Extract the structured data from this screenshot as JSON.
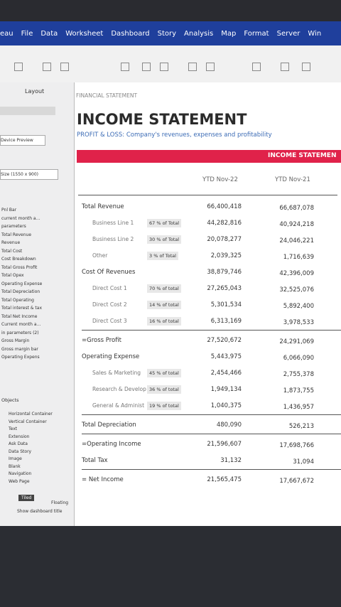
{
  "menu": [
    "eau",
    "File",
    "Data",
    "Worksheet",
    "Dashboard",
    "Story",
    "Analysis",
    "Map",
    "Format",
    "Server",
    "Win"
  ],
  "left_panel": {
    "tab": "Layout",
    "device_preview": "Device Preview",
    "size": "Size (1550 x 900)",
    "sheets": [
      "Pnl Bar",
      "current month a...",
      "parameters",
      "Total Revenue",
      "Revenue",
      "Total Cost",
      "Cost Breakdown",
      "Total Gross Profit",
      "Total Opex",
      "Operating Expense",
      "Total Depreciation",
      "Total Operating",
      "Total interest & tax",
      "Total Net Income",
      "Current month a...",
      "in parameters (2)",
      "Gross Margin",
      "Gross margin bar",
      "Operating Expens"
    ],
    "objects_title": "Objects",
    "objects": [
      "Horizontal Container",
      "Vertical Container",
      "Text",
      "Extension",
      "Ask Data",
      "Data Story",
      "Image",
      "Blank",
      "Navigation",
      "Web Page"
    ],
    "tiled": "Tiled",
    "floating": "Floating",
    "show_title": "Show dashboard title"
  },
  "dashboard": {
    "header": "FINANCIAL STATEMENT",
    "title": "INCOME STATEMENT",
    "subtitle": "PROFIT & LOSS: Company's revenues, expenses and profitability",
    "banner": "INCOME STATEMEN",
    "columns": [
      "YTD Nov-22",
      "YTD Nov-21"
    ],
    "rows": [
      {
        "label": "Total Revenue",
        "v22": "66,400,418",
        "v21": "66,687,078"
      },
      {
        "label": "Business Line 1",
        "pct": "67 % of Total",
        "v22": "44,282,816",
        "v21": "40,924,218"
      },
      {
        "label": "Business Line 2",
        "pct": "30 % of Total",
        "v22": "20,078,277",
        "v21": "24,046,221"
      },
      {
        "label": "Other",
        "pct": "3 % of Total",
        "v22": "2,039,325",
        "v21": "1,716,639"
      },
      {
        "label": "Cost Of Revenues",
        "v22": "38,879,746",
        "v21": "42,396,009"
      },
      {
        "label": "Direct Cost 1",
        "pct": "70 % of total",
        "v22": "27,265,043",
        "v21": "32,525,076"
      },
      {
        "label": "Direct Cost 2",
        "pct": "14 % of total",
        "v22": "5,301,534",
        "v21": "5,892,400"
      },
      {
        "label": "Direct Cost 3",
        "pct": "16 % of total",
        "v22": "6,313,169",
        "v21": "3,978,533"
      },
      {
        "label": "=Gross Profit",
        "v22": "27,520,672",
        "v21": "24,291,069"
      },
      {
        "label": "Operating Expense",
        "v22": "5,443,975",
        "v21": "6,066,090"
      },
      {
        "label": "Sales & Marketing",
        "pct": "45 % of total",
        "v22": "2,454,466",
        "v21": "2,755,378"
      },
      {
        "label": "Research & Develop",
        "pct": "36 % of total",
        "v22": "1,949,134",
        "v21": "1,873,755"
      },
      {
        "label": "General & Administ",
        "pct": "19 % of total",
        "v22": "1,040,375",
        "v21": "1,436,957"
      },
      {
        "label": "Total Depreciation",
        "v22": "480,090",
        "v21": "526,213"
      },
      {
        "label": "=Operating Income",
        "v22": "21,596,607",
        "v21": "17,698,766"
      },
      {
        "label": "Total Tax",
        "v22": "31,132",
        "v21": "31,094"
      },
      {
        "label": "= Net Income",
        "v22": "21,565,475",
        "v21": "17,667,672"
      }
    ]
  }
}
